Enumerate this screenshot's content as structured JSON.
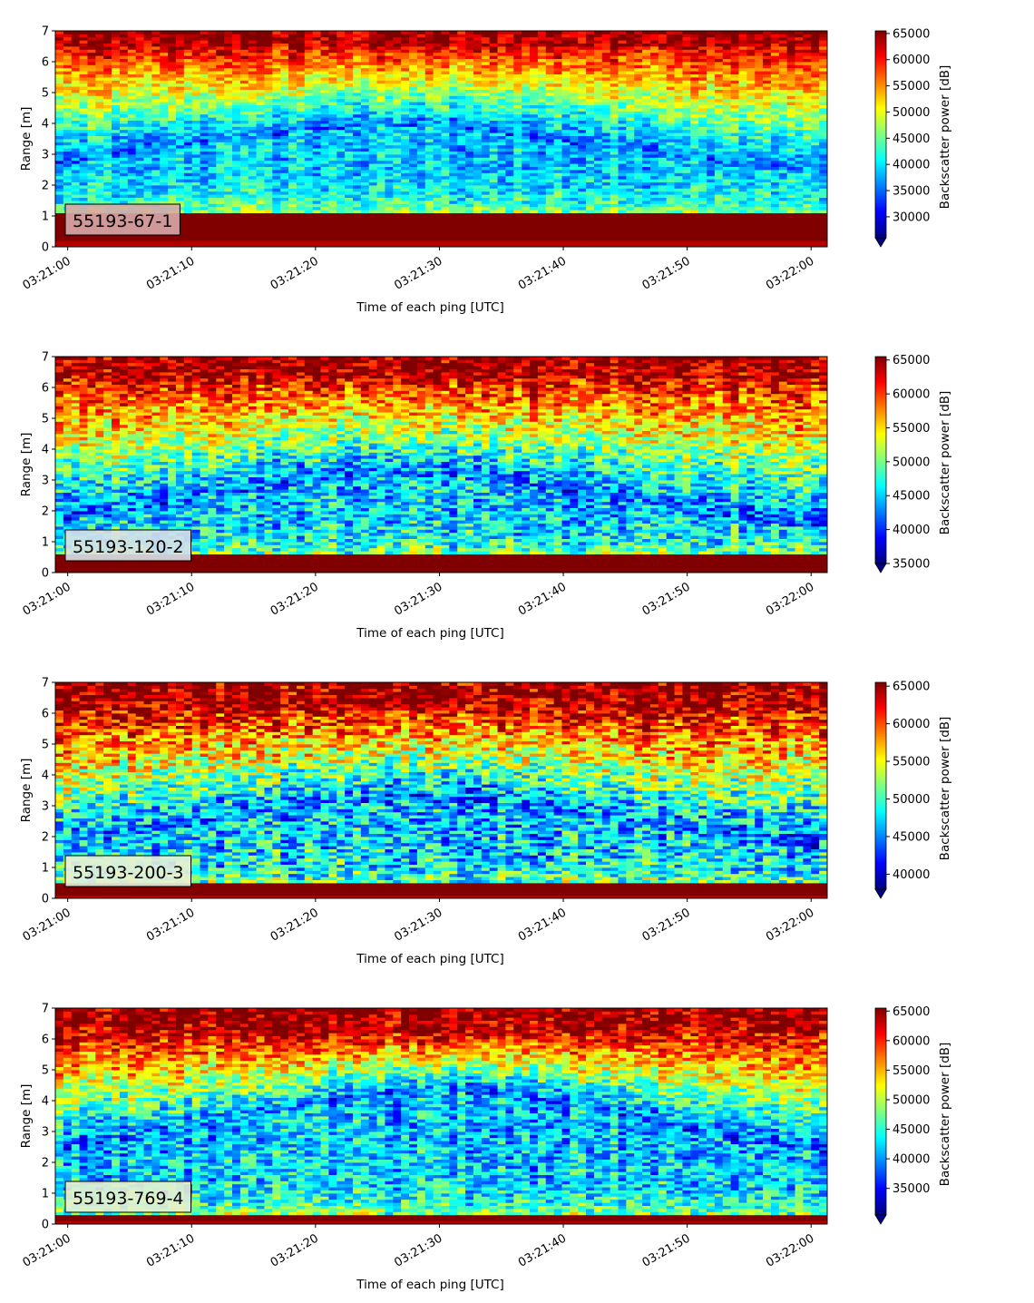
{
  "chart_data": [
    {
      "type": "heatmap",
      "id_label": "55193-67-1",
      "xlabel": "Time of each ping [UTC]",
      "ylabel": "Range [m]",
      "colorbar_label": "Backscatter power [dB]",
      "x_ticks": [
        "03:21:00",
        "03:21:10",
        "03:21:20",
        "03:21:30",
        "03:21:40",
        "03:21:50",
        "03:22:00"
      ],
      "y_ticks": [
        "0",
        "1",
        "2",
        "3",
        "4",
        "5",
        "6",
        "7"
      ],
      "ylim": [
        0,
        7
      ],
      "x_range_seconds": [
        -1,
        61.3
      ],
      "colorbar_range": [
        26000,
        65500
      ],
      "colorbar_ticks": [
        "30000",
        "35000",
        "40000",
        "45000",
        "50000",
        "55000",
        "60000",
        "65000"
      ],
      "colormap": "jet",
      "colorbar_extend": "min",
      "label_box_color": "#d8a9a9",
      "profile": {
        "seabed_top": 1.15,
        "bottom_floor": 0.25,
        "trough_base": 1.6,
        "trough_peak": 4.6,
        "peak_time_s": 26,
        "surface": 6.5,
        "noise": 0.12
      }
    },
    {
      "type": "heatmap",
      "id_label": "55193-120-2",
      "xlabel": "Time of each ping [UTC]",
      "ylabel": "Range [m]",
      "colorbar_label": "Backscatter power [dB]",
      "x_ticks": [
        "03:21:00",
        "03:21:10",
        "03:21:20",
        "03:21:30",
        "03:21:40",
        "03:21:50",
        "03:22:00"
      ],
      "y_ticks": [
        "0",
        "1",
        "2",
        "3",
        "4",
        "5",
        "6",
        "7"
      ],
      "ylim": [
        0,
        7
      ],
      "x_range_seconds": [
        -1,
        61.3
      ],
      "colorbar_range": [
        35000,
        65500
      ],
      "colorbar_ticks": [
        "35000",
        "40000",
        "45000",
        "50000",
        "55000",
        "60000",
        "65000"
      ],
      "colormap": "jet",
      "colorbar_extend": "min",
      "label_box_color": "#d8e0e8",
      "profile": {
        "seabed_top": 0.6,
        "bottom_floor": 0.0,
        "trough_base": 0.9,
        "trough_peak": 4.3,
        "peak_time_s": 27,
        "surface": 6.3,
        "noise": 0.17
      }
    },
    {
      "type": "heatmap",
      "id_label": "55193-200-3",
      "xlabel": "Time of each ping [UTC]",
      "ylabel": "Range [m]",
      "colorbar_label": "Backscatter power [dB]",
      "x_ticks": [
        "03:21:00",
        "03:21:10",
        "03:21:20",
        "03:21:30",
        "03:21:40",
        "03:21:50",
        "03:22:00"
      ],
      "y_ticks": [
        "0",
        "1",
        "2",
        "3",
        "4",
        "5",
        "6",
        "7"
      ],
      "ylim": [
        0,
        7
      ],
      "x_range_seconds": [
        -1,
        61.3
      ],
      "colorbar_range": [
        38000,
        65500
      ],
      "colorbar_ticks": [
        "40000",
        "45000",
        "50000",
        "55000",
        "60000",
        "65000"
      ],
      "colormap": "jet",
      "colorbar_extend": "min",
      "label_box_color": "#e8f0d8",
      "profile": {
        "seabed_top": 0.45,
        "bottom_floor": 0.1,
        "trough_base": 1.0,
        "trough_peak": 4.2,
        "peak_time_s": 28,
        "surface": 6.1,
        "noise": 0.2
      }
    },
    {
      "type": "heatmap",
      "id_label": "55193-769-4",
      "xlabel": "Time of each ping [UTC]",
      "ylabel": "Range [m]",
      "colorbar_label": "Backscatter power [dB]",
      "x_ticks": [
        "03:21:00",
        "03:21:10",
        "03:21:20",
        "03:21:30",
        "03:21:40",
        "03:21:50",
        "03:22:00"
      ],
      "y_ticks": [
        "0",
        "1",
        "2",
        "3",
        "4",
        "5",
        "6",
        "7"
      ],
      "ylim": [
        0,
        7
      ],
      "x_range_seconds": [
        -1,
        61.3
      ],
      "colorbar_range": [
        30500,
        65500
      ],
      "colorbar_ticks": [
        "35000",
        "40000",
        "45000",
        "50000",
        "55000",
        "60000",
        "65000"
      ],
      "colormap": "jet",
      "colorbar_extend": "min",
      "label_box_color": "#e8f0d0",
      "profile": {
        "seabed_top": 0.35,
        "bottom_floor": 0.15,
        "trough_base": 1.4,
        "trough_peak": 5.6,
        "peak_time_s": 30,
        "surface": 6.15,
        "noise": 0.16
      }
    }
  ]
}
